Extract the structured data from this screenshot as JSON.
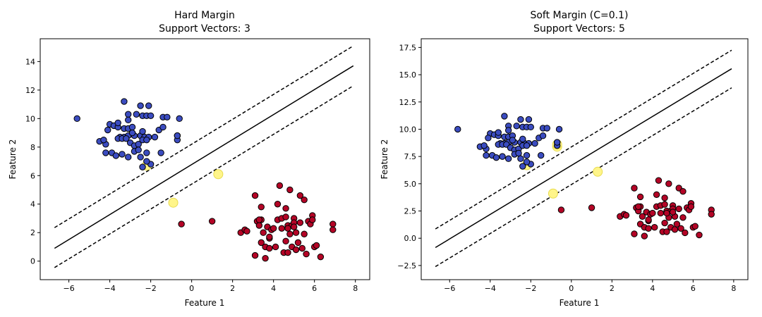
{
  "chart_data": [
    {
      "type": "scatter",
      "title_line1": "Hard Margin",
      "title_line2": "Support Vectors: 3",
      "xlabel": "Feature 1",
      "ylabel": "Feature 2",
      "xlim": [
        -7.4,
        8.7
      ],
      "ylim": [
        -1.3,
        15.6
      ],
      "xticks": [
        -6,
        -4,
        -2,
        0,
        2,
        4,
        6,
        8
      ],
      "yticks": [
        0,
        2,
        4,
        6,
        8,
        10,
        12,
        14
      ],
      "xtick_labels": [
        "−6",
        "−4",
        "−2",
        "0",
        "2",
        "4",
        "6",
        "8"
      ],
      "ytick_labels": [
        "0",
        "2",
        "4",
        "6",
        "8",
        "10",
        "12",
        "14"
      ],
      "decision_line": {
        "x": [
          -6.7,
          7.9
        ],
        "y": [
          0.9,
          13.7
        ]
      },
      "margin_upper": {
        "x": [
          -6.7,
          7.9
        ],
        "y": [
          2.35,
          15.1
        ]
      },
      "margin_lower": {
        "x": [
          -6.7,
          7.9
        ],
        "y": [
          -0.45,
          12.3
        ]
      },
      "series": [
        {
          "color": "#3b4cc0",
          "x": [
            -5.6,
            -3.3,
            -2.5,
            -2.1,
            -3.1,
            -2.7,
            -2.4,
            -2.2,
            -2.0,
            -1.4,
            -1.2,
            -4.0,
            -3.8,
            -3.6,
            -3.3,
            -3.1,
            -2.9,
            -1.6,
            -0.6,
            -4.1,
            -3.5,
            -3.3,
            -3.1,
            -2.8,
            -2.5,
            -2.3,
            -2.1,
            -1.8,
            -1.4,
            -0.7,
            -4.5,
            -4.2,
            -3.6,
            -3.4,
            -3.2,
            -3.0,
            -2.8,
            -2.6,
            -2.4,
            -2.2,
            -0.7,
            -4.3,
            -3.9,
            -3.7,
            -3.4,
            -3.1,
            -2.8,
            -2.6,
            -2.2,
            -0.7,
            -4.2,
            -3.6,
            -2.9,
            -2.5,
            -2.0,
            -1.5,
            -3.1,
            -2.4,
            -2.2,
            -2.4
          ],
          "y": [
            10.0,
            11.2,
            10.9,
            10.9,
            10.3,
            10.3,
            10.2,
            10.2,
            10.2,
            10.1,
            10.1,
            9.6,
            9.5,
            9.4,
            9.3,
            9.3,
            9.4,
            9.2,
            10.0,
            9.2,
            8.7,
            8.7,
            8.8,
            8.8,
            8.8,
            8.7,
            8.7,
            8.7,
            9.4,
            8.8,
            8.4,
            8.2,
            8.6,
            8.6,
            8.6,
            8.3,
            8.1,
            8.2,
            8.5,
            8.5,
            8.5,
            8.5,
            7.6,
            7.4,
            7.5,
            7.3,
            7.7,
            7.8,
            7.6,
            8.8,
            7.6,
            9.7,
            9.0,
            7.3,
            6.8,
            7.6,
            9.9,
            9.1,
            7.0,
            6.6
          ]
        },
        {
          "color": "#b40426",
          "x": [
            -0.5,
            1.0,
            2.4,
            2.6,
            2.7,
            3.1,
            3.2,
            3.3,
            3.4,
            3.4,
            3.5,
            3.6,
            3.7,
            3.8,
            3.8,
            3.9,
            4.0,
            4.2,
            4.3,
            4.4,
            4.4,
            4.5,
            4.6,
            4.6,
            4.7,
            4.7,
            4.8,
            4.9,
            4.9,
            5.0,
            5.0,
            5.1,
            5.1,
            5.2,
            5.3,
            5.3,
            5.4,
            5.5,
            5.6,
            5.7,
            5.8,
            5.9,
            6.0,
            6.1,
            6.3,
            6.9,
            6.9,
            3.1,
            3.4,
            4.2,
            4.6,
            5.0,
            5.5,
            5.9,
            4.8,
            4.7,
            3.6,
            3.3,
            4.1,
            3.8
          ],
          "y": [
            2.6,
            2.8,
            2.0,
            2.2,
            2.1,
            0.4,
            2.8,
            2.5,
            1.3,
            2.9,
            2.0,
            1.0,
            2.4,
            1.6,
            0.9,
            2.2,
            2.3,
            2.9,
            5.3,
            3.0,
            2.3,
            0.6,
            3.1,
            1.4,
            2.5,
            0.6,
            1.9,
            2.5,
            1.0,
            3.0,
            2.7,
            0.8,
            2.0,
            1.3,
            4.6,
            2.7,
            0.9,
            4.3,
            0.5,
            2.8,
            2.6,
            3.2,
            1.0,
            1.1,
            0.3,
            2.6,
            2.2,
            4.6,
            3.8,
            4.0,
            3.7,
            2.4,
            1.9,
            2.9,
            5.0,
            2.3,
            0.2,
            2.9,
            1.0,
            1.7
          ]
        }
      ],
      "support_vectors": {
        "x": [
          -2.2,
          1.3,
          -0.9
        ],
        "y": [
          6.7,
          6.1,
          4.1
        ]
      }
    },
    {
      "type": "scatter",
      "title_line1": "Soft Margin (C=0.1)",
      "title_line2": "Support Vectors: 5",
      "xlabel": "Feature 1",
      "ylabel": "Feature 2",
      "xlim": [
        -7.4,
        8.7
      ],
      "ylim": [
        -3.8,
        18.3
      ],
      "xticks": [
        -6,
        -4,
        -2,
        0,
        2,
        4,
        6,
        8
      ],
      "yticks": [
        -2.5,
        0.0,
        2.5,
        5.0,
        7.5,
        10.0,
        12.5,
        15.0,
        17.5
      ],
      "xtick_labels": [
        "−6",
        "−4",
        "−2",
        "0",
        "2",
        "4",
        "6",
        "8"
      ],
      "ytick_labels": [
        "−2.5",
        "0.0",
        "2.5",
        "5.0",
        "7.5",
        "10.0",
        "12.5",
        "15.0",
        "17.5"
      ],
      "decision_line": {
        "x": [
          -6.7,
          7.9
        ],
        "y": [
          -0.85,
          15.55
        ]
      },
      "margin_upper": {
        "x": [
          -6.7,
          7.9
        ],
        "y": [
          0.85,
          17.25
        ]
      },
      "margin_lower": {
        "x": [
          -6.7,
          7.9
        ],
        "y": [
          -2.6,
          13.8
        ]
      },
      "series": [
        {
          "color": "#3b4cc0",
          "x": [
            -5.6,
            -3.3,
            -2.5,
            -2.1,
            -3.1,
            -2.7,
            -2.4,
            -2.2,
            -2.0,
            -1.4,
            -1.2,
            -4.0,
            -3.8,
            -3.6,
            -3.3,
            -3.1,
            -2.9,
            -1.6,
            -0.6,
            -4.1,
            -3.5,
            -3.3,
            -3.1,
            -2.8,
            -2.5,
            -2.3,
            -2.1,
            -1.8,
            -1.4,
            -0.7,
            -4.5,
            -4.2,
            -3.6,
            -3.4,
            -3.2,
            -3.0,
            -2.8,
            -2.6,
            -2.4,
            -2.2,
            -0.7,
            -4.3,
            -3.9,
            -3.7,
            -3.4,
            -3.1,
            -2.8,
            -2.6,
            -2.2,
            -0.7,
            -4.2,
            -3.6,
            -2.9,
            -2.5,
            -2.0,
            -1.5,
            -3.1,
            -2.4,
            -2.2,
            -2.4
          ],
          "y": [
            10.0,
            11.2,
            10.9,
            10.9,
            10.3,
            10.3,
            10.2,
            10.2,
            10.2,
            10.1,
            10.1,
            9.6,
            9.5,
            9.4,
            9.3,
            9.3,
            9.4,
            9.2,
            10.0,
            9.2,
            8.7,
            8.7,
            8.8,
            8.8,
            8.8,
            8.7,
            8.7,
            8.7,
            9.4,
            8.8,
            8.4,
            8.2,
            8.6,
            8.6,
            8.6,
            8.3,
            8.1,
            8.2,
            8.5,
            8.5,
            8.5,
            8.5,
            7.6,
            7.4,
            7.5,
            7.3,
            7.7,
            7.8,
            7.6,
            8.8,
            7.6,
            9.7,
            9.0,
            7.3,
            6.8,
            7.6,
            9.9,
            9.1,
            7.0,
            6.6
          ]
        },
        {
          "color": "#b40426",
          "x": [
            -0.5,
            1.0,
            2.4,
            2.6,
            2.7,
            3.1,
            3.2,
            3.3,
            3.4,
            3.4,
            3.5,
            3.6,
            3.7,
            3.8,
            3.8,
            3.9,
            4.0,
            4.2,
            4.3,
            4.4,
            4.4,
            4.5,
            4.6,
            4.6,
            4.7,
            4.7,
            4.8,
            4.9,
            4.9,
            5.0,
            5.0,
            5.1,
            5.1,
            5.2,
            5.3,
            5.3,
            5.4,
            5.5,
            5.6,
            5.7,
            5.8,
            5.9,
            6.0,
            6.1,
            6.3,
            6.9,
            6.9,
            3.1,
            3.4,
            4.2,
            4.6,
            5.0,
            5.5,
            5.9,
            4.8,
            4.7,
            3.6,
            3.3,
            4.1,
            3.8
          ],
          "y": [
            2.6,
            2.8,
            2.0,
            2.2,
            2.1,
            0.4,
            2.8,
            2.5,
            1.3,
            2.9,
            2.0,
            1.0,
            2.4,
            1.6,
            0.9,
            2.2,
            2.3,
            2.9,
            5.3,
            3.0,
            2.3,
            0.6,
            3.1,
            1.4,
            2.5,
            0.6,
            1.9,
            2.5,
            1.0,
            3.0,
            2.7,
            0.8,
            2.0,
            1.3,
            4.6,
            2.7,
            0.9,
            4.3,
            0.5,
            2.8,
            2.6,
            3.2,
            1.0,
            1.1,
            0.3,
            2.6,
            2.2,
            4.6,
            3.8,
            4.0,
            3.7,
            2.4,
            1.9,
            2.9,
            5.0,
            2.3,
            0.2,
            2.9,
            1.0,
            1.7
          ]
        }
      ],
      "support_vectors": {
        "x": [
          -2.2,
          -0.7,
          -0.9,
          1.3,
          -0.7
        ],
        "y": [
          6.7,
          8.4,
          4.1,
          6.1,
          8.6
        ]
      }
    }
  ]
}
